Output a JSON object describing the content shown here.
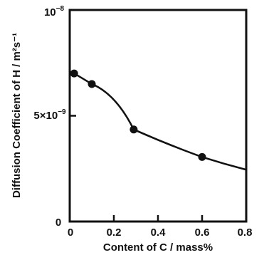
{
  "chart_data": {
    "type": "line",
    "xlabel": "Content of C / mass%",
    "ylabel": "Diffusion Coefficient of H / m²s⁻¹",
    "xlim": [
      0,
      0.8
    ],
    "ylim": [
      0,
      1e-08
    ],
    "x_ticks": [
      0,
      0.2,
      0.4,
      0.6,
      0.8
    ],
    "x_tick_labels": [
      "0",
      "0.2",
      "0.4",
      "0.6",
      "0.8"
    ],
    "y_ticks": [
      0,
      5e-09,
      1e-08
    ],
    "y_tick_labels": [
      "0",
      "5×10⁻⁹",
      "10⁻⁸"
    ],
    "grid": false,
    "series": [
      {
        "points": [
          {
            "x": 0.02,
            "y": 7e-09
          },
          {
            "x": 0.1,
            "y": 6.5e-09
          },
          {
            "x": 0.29,
            "y": 4.35e-09
          },
          {
            "x": 0.6,
            "y": 3.05e-09
          }
        ],
        "curve_extension": {
          "x": 0.8,
          "y": 2.45e-09
        }
      }
    ],
    "colors": {
      "line": "#111111",
      "marker": "#111111"
    }
  }
}
